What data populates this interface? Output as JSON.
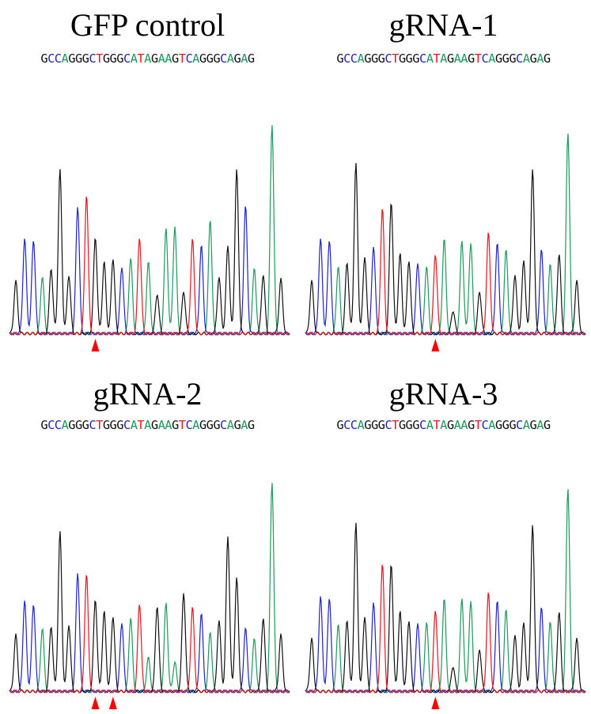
{
  "colors": {
    "A": "#1a9a5c",
    "C": "#1f22c8",
    "G": "#111111",
    "T": "#e8141c",
    "arrow": "#ff0000"
  },
  "panels": [
    {
      "title": "GFP control",
      "sequence": "GCCAGGGCTGGGCATAGAAGTCAGGGCAGAG",
      "peaks": [
        0.25,
        0.45,
        0.45,
        0.27,
        0.31,
        0.78,
        0.28,
        0.61,
        0.66,
        0.46,
        0.34,
        0.36,
        0.32,
        0.36,
        0.46,
        0.34,
        0.19,
        0.5,
        0.51,
        0.2,
        0.45,
        0.42,
        0.54,
        0.27,
        0.42,
        0.78,
        0.61,
        0.31,
        0.28,
        1.0,
        0.26
      ],
      "arrows": [
        9
      ]
    },
    {
      "title": "gRNA-1",
      "sequence": "GCCAGGGCTGGGCATAGAAGTCAGGGCAGAG",
      "peaks": [
        0.25,
        0.45,
        0.45,
        0.32,
        0.34,
        0.81,
        0.37,
        0.42,
        0.6,
        0.63,
        0.38,
        0.35,
        0.34,
        0.32,
        0.38,
        0.45,
        0.11,
        0.44,
        0.43,
        0.2,
        0.48,
        0.43,
        0.4,
        0.28,
        0.35,
        0.78,
        0.4,
        0.33,
        0.38,
        0.96,
        0.25
      ],
      "arrows": [
        14
      ]
    },
    {
      "title": "gRNA-2",
      "sequence": "GCCAGGGCTGGGCATAGAAGTCAGGGCAGAG",
      "peaks": [
        0.27,
        0.43,
        0.42,
        0.3,
        0.31,
        0.76,
        0.32,
        0.57,
        0.56,
        0.44,
        0.38,
        0.36,
        0.33,
        0.35,
        0.42,
        0.16,
        0.41,
        0.42,
        0.14,
        0.47,
        0.4,
        0.37,
        0.28,
        0.34,
        0.74,
        0.54,
        0.3,
        0.25,
        0.35,
        1.0,
        0.27
      ],
      "arrows": [
        9,
        11
      ]
    },
    {
      "title": "gRNA-3",
      "sequence": "GCCAGGGCTGGGCATAGAAGTCAGGGCAGAG",
      "peaks": [
        0.25,
        0.45,
        0.45,
        0.32,
        0.34,
        0.8,
        0.36,
        0.43,
        0.61,
        0.61,
        0.38,
        0.34,
        0.33,
        0.33,
        0.39,
        0.44,
        0.12,
        0.44,
        0.43,
        0.2,
        0.47,
        0.43,
        0.39,
        0.27,
        0.33,
        0.79,
        0.4,
        0.33,
        0.38,
        0.97,
        0.25
      ],
      "arrows": [
        14
      ]
    }
  ]
}
